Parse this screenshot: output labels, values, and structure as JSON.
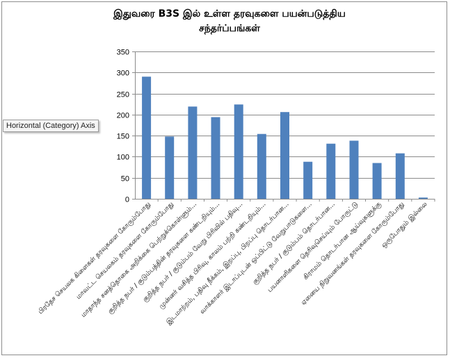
{
  "chart_data": {
    "type": "bar",
    "title_line1": "இதுவரை B3S இல் உள்ள தரவுகளை பயன்படுத்திய",
    "title_line2": "சந்தர்ப்பங்கள்",
    "ylim": [
      0,
      350
    ],
    "yticks": [
      0,
      50,
      100,
      150,
      200,
      250,
      300,
      350
    ],
    "color": "#4f81bd",
    "categories": [
      "பிரதேச செயலக கிளைகள் தரவுகளை கோரும்போது",
      "மாவட்ட செயலகம் தரவுகளை கோரும்போது",
      "மாதாந்த சனத்தொகை அறிக்கை பெற்றுக்கொள்ளும்...",
      "குறித்த நபர் / குடும்பத்தின் தரவுகளை கண்டறியும்...",
      "குறித்த நபர் / குடும்பம் வேறு பிரிவில் பதிவு...",
      "முன்னர் வசித்த பிரிவு, காலம் பற்றி கண்டறியும்...",
      "இடமாற்றம், பதிவு நீக்கம், இறப்பு, பிறப்பு தொடர்பான...",
      "வாக்காளர் இடாப்புடன் ஒப்பிட்டு வேறுபாடுகளை...",
      "குறித்த நபர் / குடும்பம் தொடர்பான...",
      "பயனாளிகளை தெரிவுசெய்யும் போருட்டு",
      "கிராமம் தொடர்பான ஆய்வுகளுக்கு",
      "ஏனைய நிறுவனங்கள் தரவுகளை கோரும்போது",
      "ஒருபோதும் இல்லை"
    ],
    "values": [
      290,
      148,
      219,
      194,
      224,
      154,
      206,
      88,
      131,
      138,
      85,
      108,
      3
    ]
  },
  "tooltip": "Horizontal (Category) Axis"
}
